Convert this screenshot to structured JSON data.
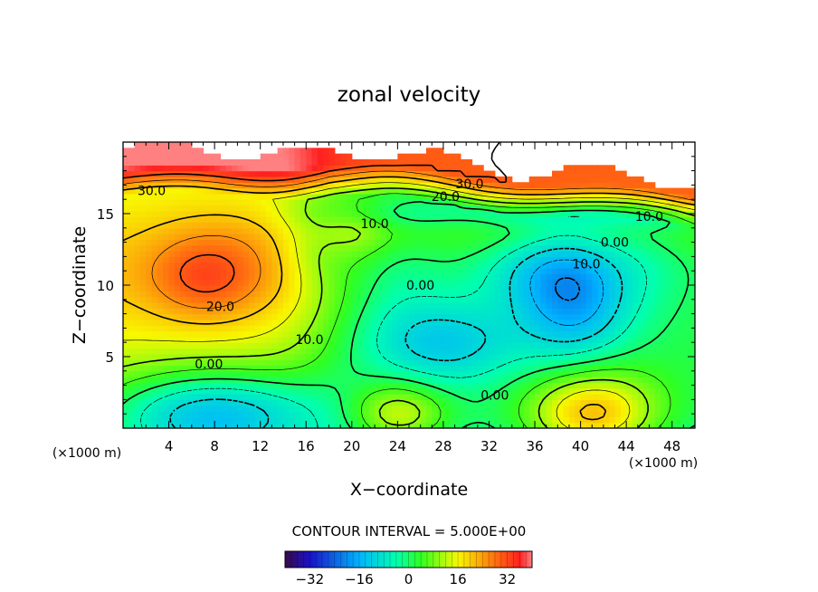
{
  "chart_data": {
    "type": "heatmap",
    "title": "zonal velocity",
    "xlabel": "X−coordinate",
    "ylabel": "Z−coordinate",
    "x_unit": "(×1000 m)",
    "y_unit": "(×1000 m)",
    "xlim": [
      0,
      50
    ],
    "ylim": [
      0,
      20
    ],
    "x_ticks": [
      "4",
      "8",
      "12",
      "16",
      "20",
      "24",
      "28",
      "32",
      "36",
      "40",
      "44",
      "48"
    ],
    "y_ticks": [
      "5",
      "10",
      "15"
    ],
    "contour_interval_text": "CONTOUR INTERVAL = 5.000E+00",
    "contour_labels": [
      {
        "text": "30.0",
        "x": 2.5,
        "z": 16.6
      },
      {
        "text": "20.0",
        "x": 28.2,
        "z": 16.2
      },
      {
        "text": "30.0",
        "x": 30.3,
        "z": 17.1
      },
      {
        "text": "10.0",
        "x": 22.0,
        "z": 14.3
      },
      {
        "text": "10.0",
        "x": 46.0,
        "z": 14.8
      },
      {
        "text": "0.00",
        "x": 43.0,
        "z": 13.0
      },
      {
        "text": "10.0",
        "x": 40.5,
        "z": 11.5
      },
      {
        "text": "0.00",
        "x": 26.0,
        "z": 10.0
      },
      {
        "text": "20.0",
        "x": 8.5,
        "z": 8.5
      },
      {
        "text": "10.0",
        "x": 16.3,
        "z": 6.2
      },
      {
        "text": "0.00",
        "x": 7.5,
        "z": 4.5
      },
      {
        "text": "0.00",
        "x": 32.5,
        "z": 2.3
      }
    ],
    "colorbar": {
      "ticks": [
        "−32",
        "−16",
        "0",
        "16",
        "32"
      ],
      "tick_values": [
        -32,
        -16,
        0,
        16,
        32
      ],
      "range": [
        -40,
        40
      ]
    }
  }
}
